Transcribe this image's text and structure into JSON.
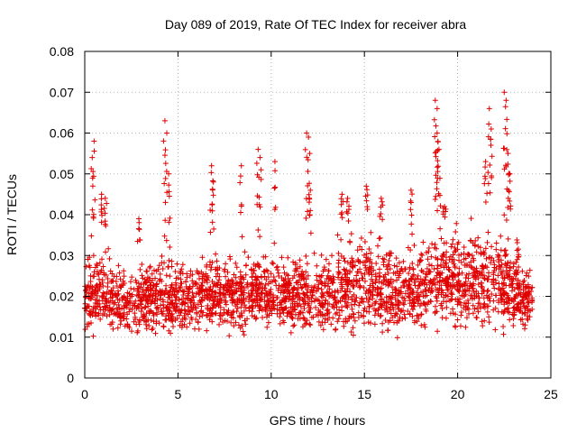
{
  "chart_data": {
    "type": "scatter",
    "title": "Day 089 of 2019, Rate Of TEC Index for receiver abra",
    "xlabel": "GPS time / hours",
    "ylabel": "ROTI / TECUs",
    "xlim": [
      0,
      25
    ],
    "ylim": [
      0,
      0.08
    ],
    "xticks": [
      0,
      5,
      10,
      15,
      20,
      25
    ],
    "xtick_labels": [
      "0",
      "5",
      "10",
      "15",
      "20",
      "25"
    ],
    "yticks": [
      0,
      0.01,
      0.02,
      0.03,
      0.04,
      0.05,
      0.06,
      0.07,
      0.08
    ],
    "ytick_labels": [
      "0",
      "0.01",
      "0.02",
      "0.03",
      "0.04",
      "0.05",
      "0.06",
      "0.07",
      "0.08"
    ],
    "grid": true,
    "marker": "+",
    "color": "#e00000",
    "data_range_x": [
      0,
      24
    ],
    "series": [
      {
        "name": "ROTI",
        "baseline_envelope": {
          "x": [
            0,
            1,
            2,
            3,
            4,
            5,
            6,
            7,
            8,
            9,
            10,
            11,
            12,
            13,
            14,
            15,
            16,
            17,
            18,
            19,
            20,
            21,
            22,
            23,
            24
          ],
          "low": [
            0.009,
            0.009,
            0.008,
            0.009,
            0.009,
            0.009,
            0.01,
            0.01,
            0.01,
            0.01,
            0.01,
            0.01,
            0.01,
            0.01,
            0.009,
            0.009,
            0.009,
            0.009,
            0.009,
            0.01,
            0.01,
            0.009,
            0.009,
            0.01,
            0.012
          ],
          "high": [
            0.033,
            0.035,
            0.031,
            0.031,
            0.033,
            0.031,
            0.034,
            0.036,
            0.032,
            0.034,
            0.033,
            0.033,
            0.034,
            0.034,
            0.038,
            0.039,
            0.038,
            0.036,
            0.038,
            0.039,
            0.04,
            0.041,
            0.042,
            0.036,
            0.028
          ]
        },
        "peaks": [
          {
            "x": 0.4,
            "y": 0.054
          },
          {
            "x": 0.5,
            "y": 0.058
          },
          {
            "x": 0.9,
            "y": 0.045
          },
          {
            "x": 1.1,
            "y": 0.044
          },
          {
            "x": 2.9,
            "y": 0.039
          },
          {
            "x": 4.3,
            "y": 0.063
          },
          {
            "x": 4.4,
            "y": 0.06
          },
          {
            "x": 4.5,
            "y": 0.05
          },
          {
            "x": 6.8,
            "y": 0.052
          },
          {
            "x": 6.9,
            "y": 0.048
          },
          {
            "x": 8.4,
            "y": 0.052
          },
          {
            "x": 9.3,
            "y": 0.056
          },
          {
            "x": 9.4,
            "y": 0.054
          },
          {
            "x": 10.2,
            "y": 0.053
          },
          {
            "x": 11.9,
            "y": 0.06
          },
          {
            "x": 12.0,
            "y": 0.059
          },
          {
            "x": 12.1,
            "y": 0.046
          },
          {
            "x": 13.8,
            "y": 0.045
          },
          {
            "x": 14.1,
            "y": 0.044
          },
          {
            "x": 15.1,
            "y": 0.047
          },
          {
            "x": 15.9,
            "y": 0.044
          },
          {
            "x": 17.5,
            "y": 0.046
          },
          {
            "x": 18.8,
            "y": 0.068
          },
          {
            "x": 18.9,
            "y": 0.066
          },
          {
            "x": 18.9,
            "y": 0.06
          },
          {
            "x": 19.0,
            "y": 0.056
          },
          {
            "x": 19.3,
            "y": 0.042
          },
          {
            "x": 21.5,
            "y": 0.053
          },
          {
            "x": 21.7,
            "y": 0.066
          },
          {
            "x": 21.8,
            "y": 0.061
          },
          {
            "x": 22.5,
            "y": 0.07
          },
          {
            "x": 22.6,
            "y": 0.068
          },
          {
            "x": 22.7,
            "y": 0.055
          },
          {
            "x": 22.8,
            "y": 0.05
          },
          {
            "x": 23.2,
            "y": 0.029
          }
        ]
      }
    ]
  }
}
